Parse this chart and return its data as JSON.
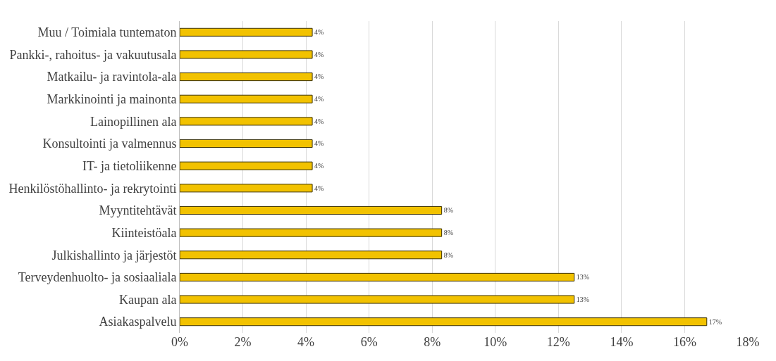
{
  "chart_data": {
    "type": "bar",
    "orientation": "horizontal",
    "categories": [
      "Muu / Toimiala tuntematon",
      "Pankki-, rahoitus- ja vakuutusala",
      "Matkailu- ja ravintola-ala",
      "Markkinointi ja mainonta",
      "Lainopillinen ala",
      "Konsultointi ja valmennus",
      "IT- ja tietoliikenne",
      "Henkilöstöhallinto- ja rekrytointi",
      "Myyntitehtävät",
      "Kiinteistöala",
      "Julkishallinto ja järjestöt",
      "Terveydenhuolto- ja sosiaaliala",
      "Kaupan ala",
      "Asiakaspalvelu"
    ],
    "values": [
      4.2,
      4.2,
      4.2,
      4.2,
      4.2,
      4.2,
      4.2,
      4.2,
      8.3,
      8.3,
      8.3,
      12.5,
      12.5,
      16.7
    ],
    "value_labels": [
      "4%",
      "4%",
      "4%",
      "4%",
      "4%",
      "4%",
      "4%",
      "4%",
      "8%",
      "8%",
      "8%",
      "13%",
      "13%",
      "17%"
    ],
    "color": "#f2c200",
    "xlim": [
      0,
      18
    ],
    "xticks": [
      {
        "value": 0,
        "label": "0%"
      },
      {
        "value": 2,
        "label": "2%"
      },
      {
        "value": 4,
        "label": "4%"
      },
      {
        "value": 6,
        "label": "6%"
      },
      {
        "value": 8,
        "label": "8%"
      },
      {
        "value": 10,
        "label": "10%"
      },
      {
        "value": 12,
        "label": "12%"
      },
      {
        "value": 14,
        "label": "14%"
      },
      {
        "value": 16,
        "label": "16%"
      },
      {
        "value": 18,
        "label": "18%"
      }
    ],
    "grid": "x",
    "legend": false
  }
}
